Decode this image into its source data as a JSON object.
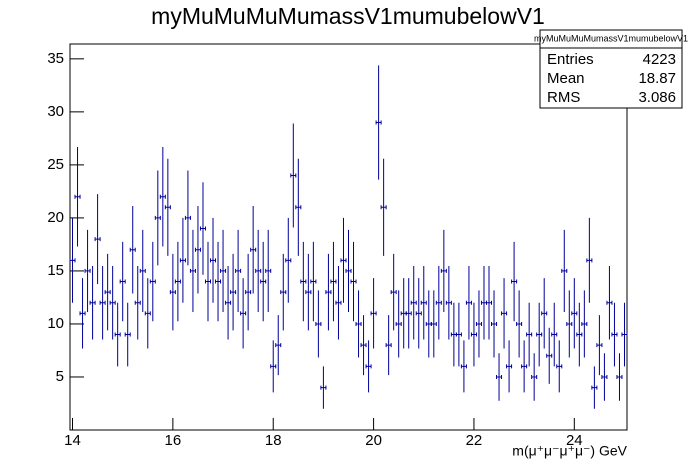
{
  "chart_data": {
    "type": "errorbar-histogram",
    "title": "myMuMuMuMumassV1mumubelowV1",
    "x_label": "m(μ⁺μ⁻μ⁺μ⁻) GeV",
    "color": "#000099",
    "bin_width": 0.1,
    "x": [
      14.0,
      14.1,
      14.2,
      14.3,
      14.4,
      14.5,
      14.6,
      14.7,
      14.8,
      14.9,
      15.0,
      15.1,
      15.2,
      15.3,
      15.4,
      15.5,
      15.6,
      15.7,
      15.8,
      15.9,
      16.0,
      16.1,
      16.2,
      16.3,
      16.4,
      16.5,
      16.6,
      16.7,
      16.8,
      16.9,
      17.0,
      17.1,
      17.2,
      17.3,
      17.4,
      17.5,
      17.6,
      17.7,
      17.8,
      17.9,
      18.0,
      18.1,
      18.2,
      18.3,
      18.4,
      18.5,
      18.6,
      18.7,
      18.8,
      18.9,
      19.0,
      19.1,
      19.2,
      19.3,
      19.4,
      19.5,
      19.6,
      19.7,
      19.8,
      19.9,
      20.0,
      20.1,
      20.2,
      20.3,
      20.4,
      20.5,
      20.6,
      20.7,
      20.8,
      20.9,
      21.0,
      21.1,
      21.2,
      21.3,
      21.4,
      21.5,
      21.6,
      21.7,
      21.8,
      21.9,
      22.0,
      22.1,
      22.2,
      22.3,
      22.4,
      22.5,
      22.6,
      22.7,
      22.8,
      22.9,
      23.0,
      23.1,
      23.2,
      23.3,
      23.4,
      23.5,
      23.6,
      23.7,
      23.8,
      23.9,
      24.0,
      24.1,
      24.2,
      24.3,
      24.4,
      24.5,
      24.6,
      24.7,
      24.8,
      24.9,
      25.0
    ],
    "values": [
      16,
      22,
      11,
      15,
      12,
      18,
      12,
      13,
      12,
      9,
      14,
      9,
      17,
      12,
      15,
      11,
      14,
      20,
      22,
      21,
      13,
      14,
      16,
      20,
      15,
      17,
      19,
      14,
      16,
      14,
      15,
      12,
      13,
      15,
      11,
      13,
      17,
      15,
      14,
      15,
      6,
      8,
      13,
      16,
      24,
      21,
      14,
      13,
      14,
      10,
      4,
      13,
      14,
      12,
      16,
      15,
      14,
      10,
      8,
      6,
      11,
      29,
      21,
      8,
      13,
      10,
      11,
      11,
      12,
      11,
      12,
      10,
      10,
      12,
      15,
      12,
      9,
      9,
      6,
      12,
      9,
      10,
      12,
      12,
      10,
      5,
      11,
      6,
      14,
      10,
      6,
      9,
      5,
      9,
      11,
      7,
      9,
      6,
      15,
      10,
      11,
      9,
      10,
      16,
      4,
      8,
      5,
      12,
      9,
      5,
      9
    ],
    "xlim": [
      13.95,
      25.05
    ],
    "ylim": [
      0,
      36.4
    ],
    "xticks": [
      14,
      16,
      18,
      20,
      22,
      24
    ],
    "yticks": [
      5,
      10,
      15,
      20,
      25,
      30,
      35
    ],
    "stats": {
      "title": "myMuMuMuMumassV1mumubelowV1",
      "rows": [
        [
          "Entries",
          4223
        ],
        [
          "Mean",
          18.87
        ],
        [
          "RMS",
          3.086
        ]
      ]
    }
  }
}
